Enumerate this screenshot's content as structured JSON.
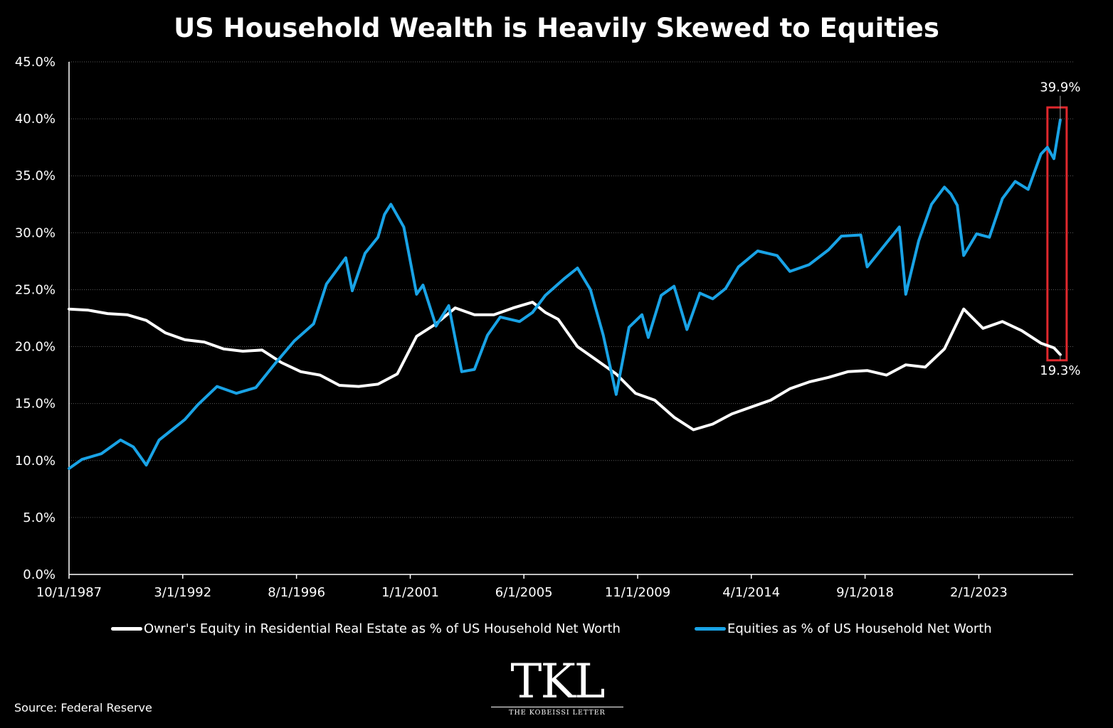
{
  "chart_data": {
    "type": "line",
    "title": "US Household Wealth is Heavily Skewed to Equities",
    "xlabel": "",
    "ylabel": "",
    "ylim": [
      0,
      45
    ],
    "y_ticks": [
      "0.0%",
      "5.0%",
      "10.0%",
      "15.0%",
      "20.0%",
      "25.0%",
      "30.0%",
      "35.0%",
      "40.0%",
      "45.0%"
    ],
    "x_ticks": [
      "10/1/1987",
      "3/1/1992",
      "8/1/1996",
      "1/1/2001",
      "6/1/2005",
      "11/1/2009",
      "4/1/2014",
      "9/1/2018",
      "2/1/2023"
    ],
    "x_range": [
      "1987-10-01",
      "2026-10-01"
    ],
    "grid": "horizontal",
    "legend_position": "bottom",
    "series": [
      {
        "name": "Owner's Equity in Residential Real Estate as % of US Household Net Worth",
        "color": "#ffffff",
        "points": [
          [
            "1987-10-01",
            23.3
          ],
          [
            "1988-07-01",
            23.2
          ],
          [
            "1989-04-01",
            22.9
          ],
          [
            "1990-01-01",
            22.8
          ],
          [
            "1990-10-01",
            22.3
          ],
          [
            "1991-07-01",
            21.2
          ],
          [
            "1992-04-01",
            20.6
          ],
          [
            "1993-01-01",
            20.4
          ],
          [
            "1993-10-01",
            19.8
          ],
          [
            "1994-07-01",
            19.6
          ],
          [
            "1995-04-01",
            19.7
          ],
          [
            "1996-01-01",
            18.6
          ],
          [
            "1996-10-01",
            17.8
          ],
          [
            "1997-07-01",
            17.5
          ],
          [
            "1998-04-01",
            16.6
          ],
          [
            "1999-01-01",
            16.5
          ],
          [
            "1999-10-01",
            16.7
          ],
          [
            "2000-07-01",
            17.6
          ],
          [
            "2001-04-01",
            20.9
          ],
          [
            "2002-01-01",
            22.0
          ],
          [
            "2002-10-01",
            23.4
          ],
          [
            "2003-07-01",
            22.8
          ],
          [
            "2004-04-01",
            22.8
          ],
          [
            "2005-01-01",
            23.4
          ],
          [
            "2005-10-01",
            23.9
          ],
          [
            "2006-04-01",
            23.0
          ],
          [
            "2006-10-01",
            22.4
          ],
          [
            "2007-07-01",
            20.0
          ],
          [
            "2008-04-01",
            18.8
          ],
          [
            "2009-01-01",
            17.6
          ],
          [
            "2009-10-01",
            15.9
          ],
          [
            "2010-07-01",
            15.3
          ],
          [
            "2011-04-01",
            13.8
          ],
          [
            "2012-01-01",
            12.7
          ],
          [
            "2012-10-01",
            13.2
          ],
          [
            "2013-07-01",
            14.1
          ],
          [
            "2014-04-01",
            14.7
          ],
          [
            "2015-01-01",
            15.3
          ],
          [
            "2015-10-01",
            16.3
          ],
          [
            "2016-07-01",
            16.9
          ],
          [
            "2017-04-01",
            17.3
          ],
          [
            "2018-01-01",
            17.8
          ],
          [
            "2018-10-01",
            17.9
          ],
          [
            "2019-07-01",
            17.5
          ],
          [
            "2020-04-01",
            18.4
          ],
          [
            "2021-01-01",
            18.2
          ],
          [
            "2021-10-01",
            19.8
          ],
          [
            "2022-07-01",
            23.3
          ],
          [
            "2023-04-01",
            21.6
          ],
          [
            "2024-01-01",
            22.2
          ],
          [
            "2024-10-01",
            21.4
          ],
          [
            "2025-07-01",
            20.3
          ],
          [
            "2026-01-01",
            19.9
          ],
          [
            "2026-04-01",
            19.3
          ]
        ]
      },
      {
        "name": "Equities as % of US Household Net Worth",
        "color": "#19a3e6",
        "points": [
          [
            "1987-10-01",
            9.3
          ],
          [
            "1988-04-01",
            10.1
          ],
          [
            "1989-01-01",
            10.6
          ],
          [
            "1989-10-01",
            11.8
          ],
          [
            "1990-04-01",
            11.2
          ],
          [
            "1990-10-01",
            9.6
          ],
          [
            "1991-04-01",
            11.8
          ],
          [
            "1991-10-01",
            12.7
          ],
          [
            "1992-04-01",
            13.6
          ],
          [
            "1992-10-01",
            14.9
          ],
          [
            "1993-07-01",
            16.5
          ],
          [
            "1994-04-01",
            15.9
          ],
          [
            "1995-01-01",
            16.4
          ],
          [
            "1995-10-01",
            18.5
          ],
          [
            "1996-07-01",
            20.5
          ],
          [
            "1997-04-01",
            22.0
          ],
          [
            "1997-10-01",
            25.5
          ],
          [
            "1998-07-01",
            27.8
          ],
          [
            "1998-10-01",
            24.9
          ],
          [
            "1999-04-01",
            28.2
          ],
          [
            "1999-10-01",
            29.6
          ],
          [
            "2000-01-01",
            31.6
          ],
          [
            "2000-04-01",
            32.5
          ],
          [
            "2000-10-01",
            30.5
          ],
          [
            "2001-04-01",
            24.6
          ],
          [
            "2001-07-01",
            25.4
          ],
          [
            "2002-01-01",
            21.8
          ],
          [
            "2002-07-01",
            23.6
          ],
          [
            "2003-01-01",
            17.8
          ],
          [
            "2003-07-01",
            18.0
          ],
          [
            "2004-01-01",
            21.0
          ],
          [
            "2004-07-01",
            22.6
          ],
          [
            "2005-04-01",
            22.2
          ],
          [
            "2005-10-01",
            23.0
          ],
          [
            "2006-04-01",
            24.5
          ],
          [
            "2007-01-01",
            26.0
          ],
          [
            "2007-07-01",
            26.9
          ],
          [
            "2008-01-01",
            25.0
          ],
          [
            "2008-07-01",
            21.0
          ],
          [
            "2009-01-01",
            15.8
          ],
          [
            "2009-07-01",
            21.7
          ],
          [
            "2010-01-01",
            22.8
          ],
          [
            "2010-04-01",
            20.8
          ],
          [
            "2010-10-01",
            24.5
          ],
          [
            "2011-04-01",
            25.3
          ],
          [
            "2011-10-01",
            21.5
          ],
          [
            "2012-04-01",
            24.7
          ],
          [
            "2012-10-01",
            24.2
          ],
          [
            "2013-04-01",
            25.1
          ],
          [
            "2013-10-01",
            27.0
          ],
          [
            "2014-07-01",
            28.4
          ],
          [
            "2015-04-01",
            28.0
          ],
          [
            "2015-10-01",
            26.6
          ],
          [
            "2016-07-01",
            27.2
          ],
          [
            "2017-04-01",
            28.5
          ],
          [
            "2017-10-01",
            29.7
          ],
          [
            "2018-07-01",
            29.8
          ],
          [
            "2018-10-01",
            27.0
          ],
          [
            "2019-07-01",
            29.1
          ],
          [
            "2020-01-01",
            30.5
          ],
          [
            "2020-04-01",
            24.6
          ],
          [
            "2020-10-01",
            29.3
          ],
          [
            "2021-04-01",
            32.5
          ],
          [
            "2021-10-01",
            34.0
          ],
          [
            "2022-01-01",
            33.4
          ],
          [
            "2022-04-01",
            32.4
          ],
          [
            "2022-07-01",
            28.0
          ],
          [
            "2023-01-01",
            29.9
          ],
          [
            "2023-07-01",
            29.6
          ],
          [
            "2024-01-01",
            33.0
          ],
          [
            "2024-07-01",
            34.5
          ],
          [
            "2025-01-01",
            33.8
          ],
          [
            "2025-07-01",
            36.9
          ],
          [
            "2025-10-01",
            37.5
          ],
          [
            "2026-01-01",
            36.5
          ],
          [
            "2026-04-01",
            39.9
          ]
        ]
      }
    ],
    "annotations": [
      {
        "text": "39.9%",
        "x": "2026-04-01",
        "y": 39.9,
        "series": 1,
        "placement": "above"
      },
      {
        "text": "19.3%",
        "x": "2026-04-01",
        "y": 19.3,
        "series": 0,
        "placement": "below"
      }
    ],
    "highlight": {
      "x_from": "2025-10-01",
      "x_to": "2026-07-01",
      "y_from": 18.8,
      "y_to": 41.0,
      "color": "#e0282d"
    }
  },
  "source_note": "Source: Federal Reserve",
  "logo": {
    "main": "TKL",
    "sub": "THE KOBEISSI LETTER"
  }
}
